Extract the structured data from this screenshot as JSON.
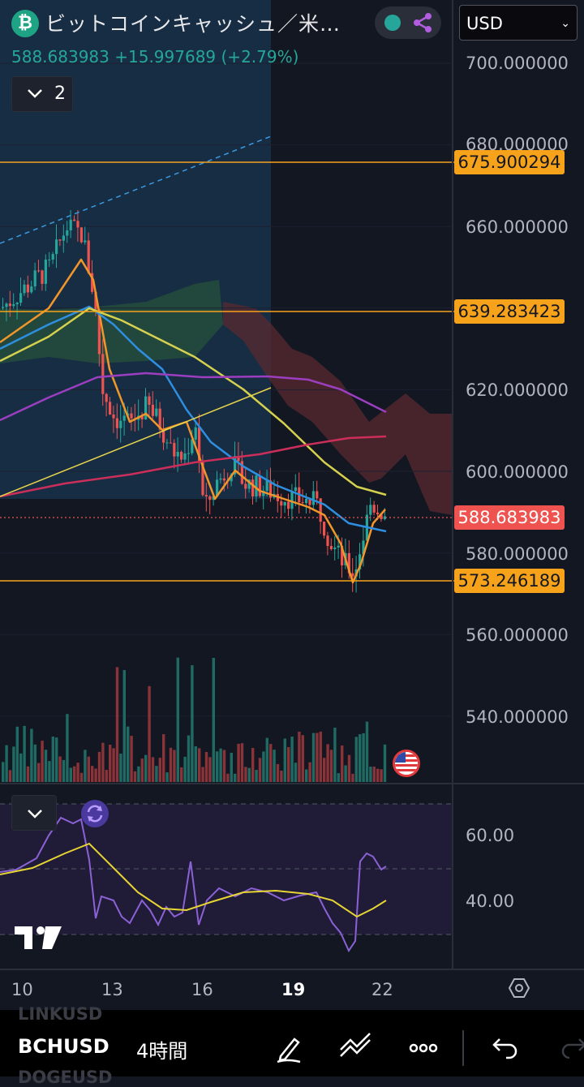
{
  "header": {
    "title": "ビットコインキャッシュ／米…",
    "price_line": "588.683983  +15.997689 (+2.79%)",
    "currency_select": "USD",
    "collapse_count": "2",
    "coin_glyph": "₿"
  },
  "price_axis": {
    "ticks": [
      "700.000000",
      "680.000000",
      "660.000000",
      "620.000000",
      "600.000000",
      "580.000000",
      "560.000000",
      "540.000000"
    ],
    "line_labels": [
      "675.900294",
      "639.283423",
      "573.246189"
    ],
    "current_price": "588.683983"
  },
  "rsi_axis": {
    "ticks": [
      "60.00",
      "40.00"
    ]
  },
  "time_axis": {
    "labels": [
      "10",
      "13",
      "16",
      "19",
      "22"
    ]
  },
  "toolbar": {
    "symbol": "BCHUSD",
    "timeframe": "4時間",
    "ghost_above": "LINKUSD",
    "ghost_below": "DOGEUSD"
  },
  "colors": {
    "background": "#131722",
    "up": "#26a69a",
    "down": "#ef5350",
    "horizontal_line": "#f7a21b",
    "ema_orange": "#f0962a",
    "ema_blue": "#2e8ee0",
    "ema_yellow": "#d5d04d",
    "ema_purple": "#9c3ec0",
    "ema_red": "#cc2e5a",
    "rsi": "#8b62d6",
    "rsi_ma": "#e7d534"
  },
  "icons": {
    "coin": "bitcoin-cash-icon",
    "share": "share-icon",
    "settings": "settings-icon",
    "draw": "pen-icon",
    "indicators": "trendline-icon",
    "more": "more-icon",
    "undo": "undo-icon",
    "redo": "redo-icon"
  }
}
